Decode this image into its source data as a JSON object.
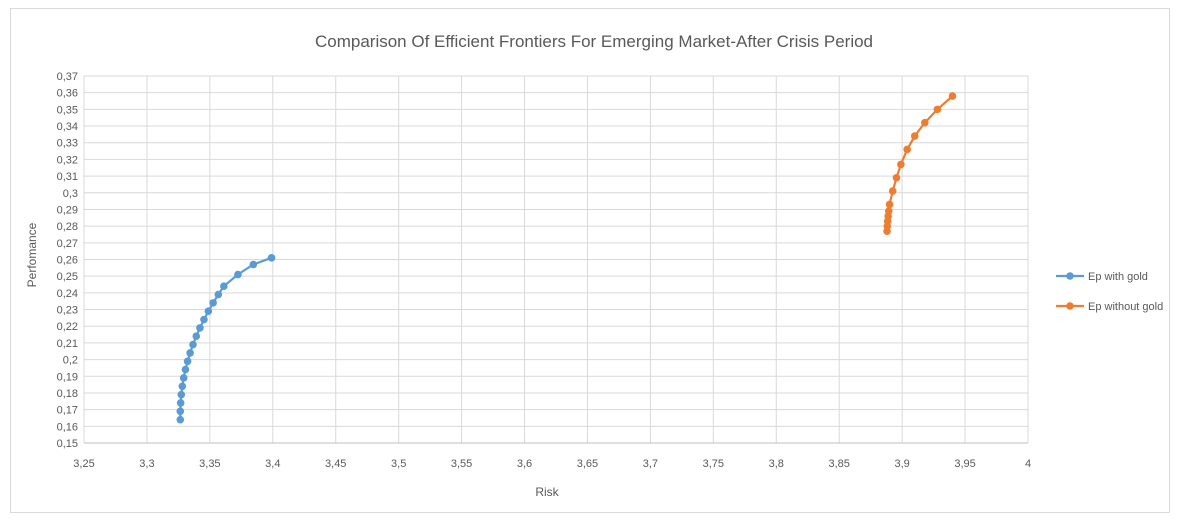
{
  "chart_data": {
    "type": "scatter",
    "title": "Comparison Of Efficient Frontiers For Emerging Market-After Crisis Period",
    "xlabel": "Risk",
    "ylabel": "Perfomance",
    "xlim": [
      3.25,
      4
    ],
    "ylim": [
      0.15,
      0.37
    ],
    "x_ticks": [
      "3,25",
      "3,3",
      "3,35",
      "3,4",
      "3,45",
      "3,5",
      "3,55",
      "3,6",
      "3,65",
      "3,7",
      "3,75",
      "3,8",
      "3,85",
      "3,9",
      "3,95",
      "4"
    ],
    "y_ticks": [
      "0,15",
      "0,16",
      "0,17",
      "0,18",
      "0,19",
      "0,2",
      "0,21",
      "0,22",
      "0,23",
      "0,24",
      "0,25",
      "0,26",
      "0,27",
      "0,28",
      "0,29",
      "0,3",
      "0,31",
      "0,32",
      "0,33",
      "0,34",
      "0,35",
      "0,36",
      "0,37"
    ],
    "grid": true,
    "legend_position": "right",
    "series": [
      {
        "name": "Ep with gold",
        "color": "#5b9bd5",
        "points": [
          [
            3.3265,
            0.164
          ],
          [
            3.3265,
            0.169
          ],
          [
            3.3268,
            0.174
          ],
          [
            3.3273,
            0.179
          ],
          [
            3.3281,
            0.184
          ],
          [
            3.3292,
            0.189
          ],
          [
            3.3306,
            0.194
          ],
          [
            3.3323,
            0.199
          ],
          [
            3.3343,
            0.204
          ],
          [
            3.3366,
            0.209
          ],
          [
            3.3392,
            0.214
          ],
          [
            3.3421,
            0.219
          ],
          [
            3.3453,
            0.224
          ],
          [
            3.3488,
            0.229
          ],
          [
            3.3526,
            0.234
          ],
          [
            3.3567,
            0.239
          ],
          [
            3.3611,
            0.244
          ],
          [
            3.3723,
            0.251
          ],
          [
            3.3845,
            0.257
          ],
          [
            3.399,
            0.261
          ]
        ]
      },
      {
        "name": "Ep without gold",
        "color": "#ed7d31",
        "points": [
          [
            3.888,
            0.277
          ],
          [
            3.8882,
            0.28
          ],
          [
            3.8885,
            0.283
          ],
          [
            3.8889,
            0.286
          ],
          [
            3.8894,
            0.289
          ],
          [
            3.89,
            0.293
          ],
          [
            3.8925,
            0.301
          ],
          [
            3.8955,
            0.309
          ],
          [
            3.899,
            0.317
          ],
          [
            3.904,
            0.326
          ],
          [
            3.91,
            0.334
          ],
          [
            3.918,
            0.342
          ],
          [
            3.928,
            0.35
          ],
          [
            3.94,
            0.358
          ]
        ]
      }
    ]
  }
}
